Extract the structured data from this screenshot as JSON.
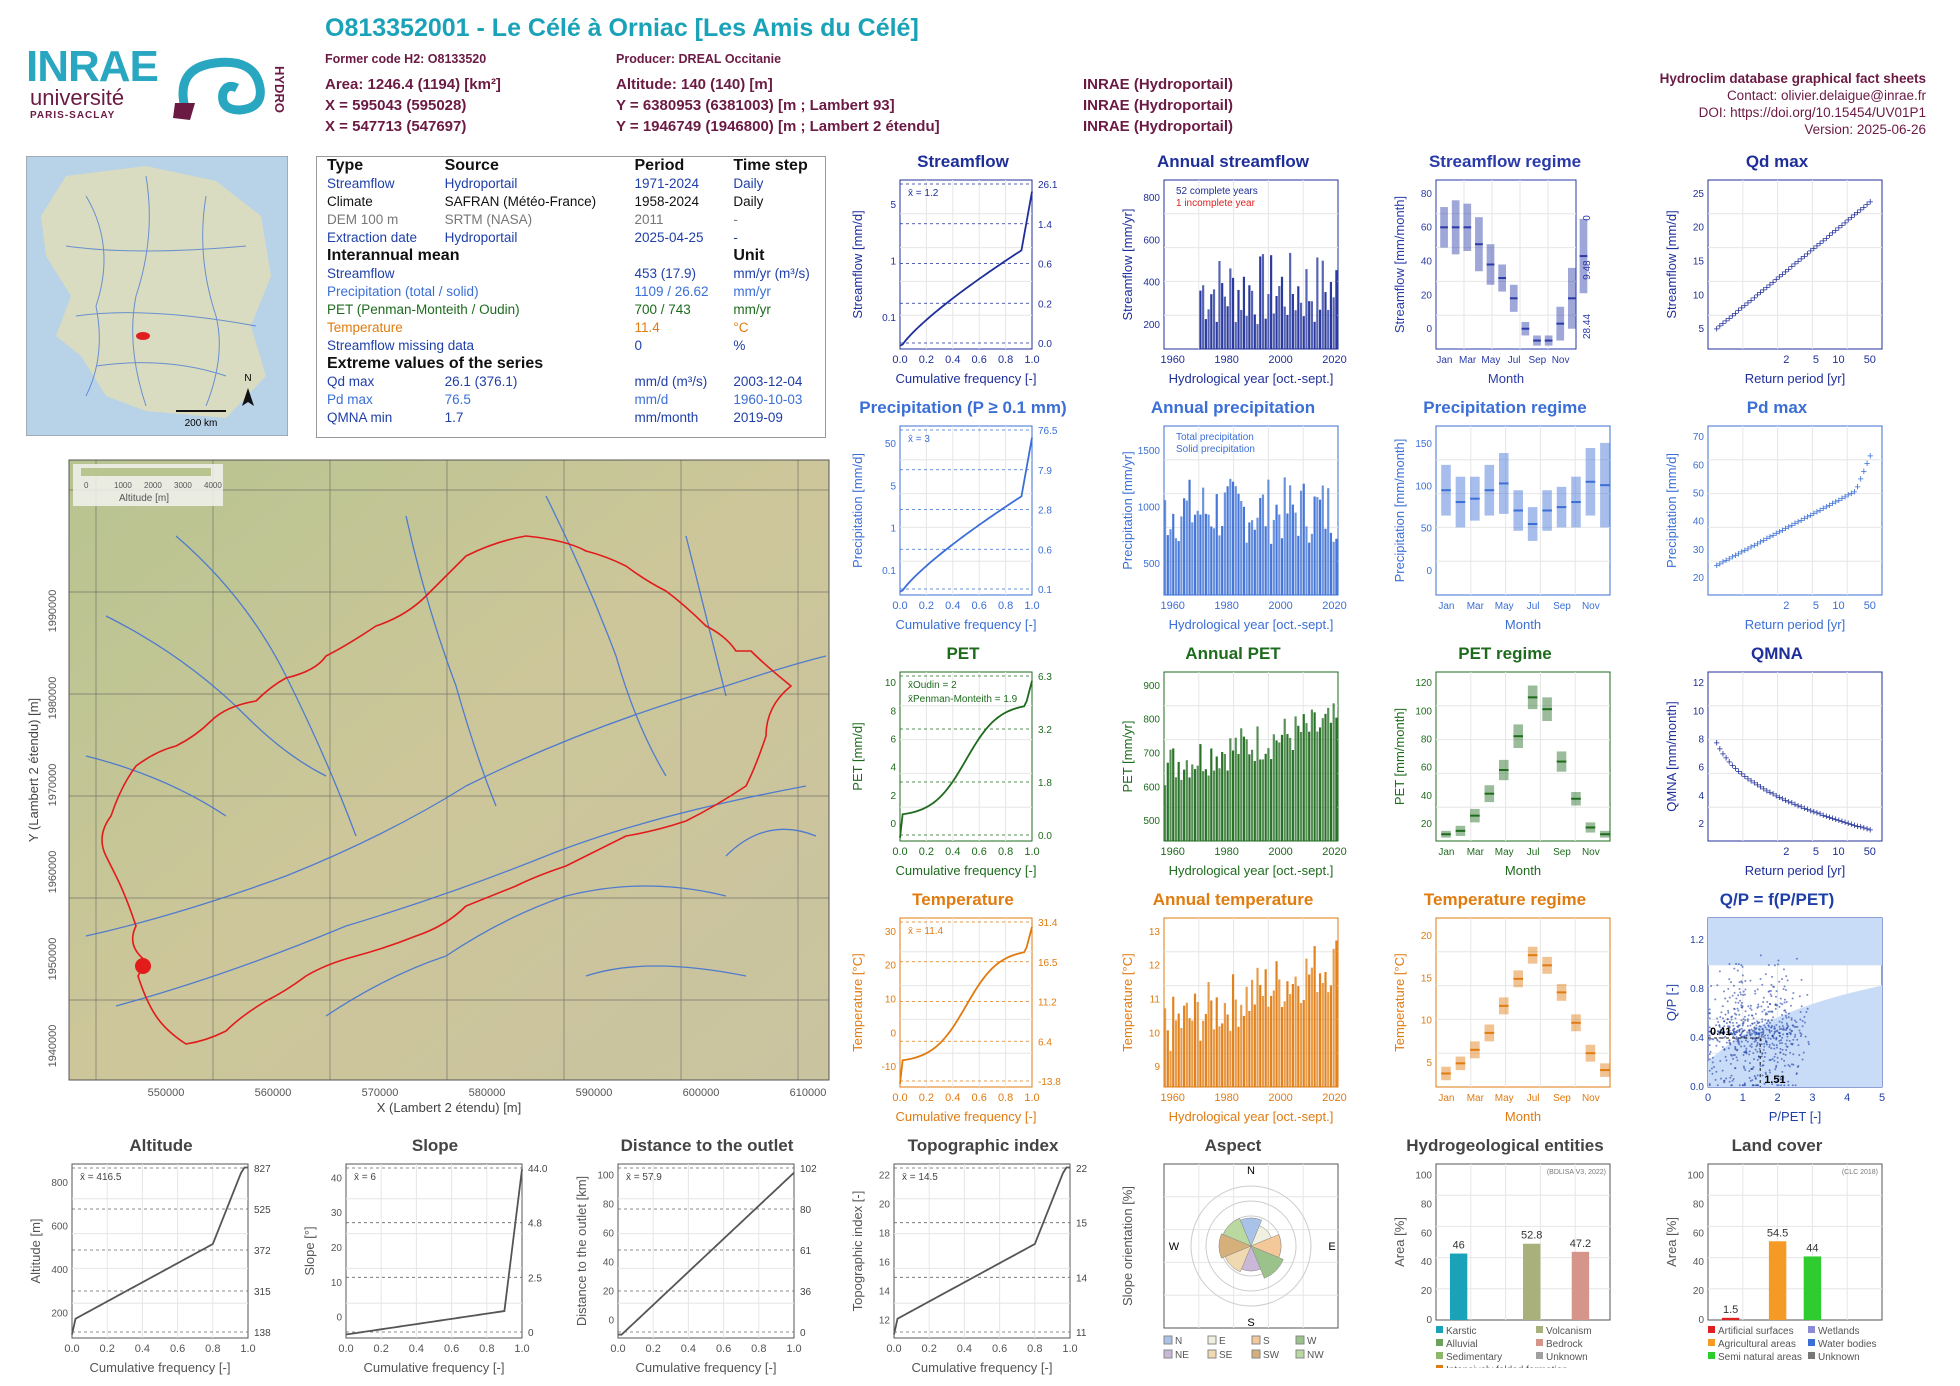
{
  "header": {
    "title": "O813352001 - Le Célé à Orniac [Les Amis du Célé]",
    "former_code": "Former code H2: O8133520",
    "producer": "Producer: DREAL Occitanie",
    "area": "Area: 1246.4 (1194) [km²]",
    "altitude": "Altitude: 140 (140) [m]",
    "x93": "X = 595043 (595028)",
    "y93": "Y = 6380953 (6381003) [m ; Lambert 93]",
    "x2e": "X = 547713 (547697)",
    "y2e": "Y = 1946749 (1946800) [m ; Lambert 2 étendu]",
    "src1": "INRAE (Hydroportail)",
    "src2": "INRAE (Hydroportail)",
    "src3": "INRAE (Hydroportail)"
  },
  "logos": {
    "inrae": "INRAE",
    "universite": "université",
    "paris_saclay": "PARIS-SACLAY",
    "hydro": "HYDRO"
  },
  "right_info": {
    "line1": "Hydroclim database graphical fact sheets",
    "line2": "Contact: olivier.delaigue@inrae.fr",
    "line3": "DOI: https://doi.org/10.15454/UV01P1",
    "line4": "Version: 2025-06-26"
  },
  "info_table": {
    "headers": [
      "Type",
      "Source",
      "Period",
      "Time step"
    ],
    "rows": [
      {
        "type": "Streamflow",
        "source": "Hydroportail",
        "period": "1971-2024",
        "step": "Daily",
        "color": "#1f3fa8"
      },
      {
        "type": "Climate",
        "source": "SAFRAN (Météo-France)",
        "period": "1958-2024",
        "step": "Daily",
        "color": "#111111"
      },
      {
        "type": "DEM 100 m",
        "source": "SRTM (NASA)",
        "period": "2011",
        "step": "-",
        "color": "#777777"
      },
      {
        "type": "Extraction date",
        "source": "Hydroportail",
        "period": "2025-04-25",
        "step": "-",
        "color": "#1f3fa8"
      }
    ],
    "interannual_title": "Interannual mean",
    "unit_title": "Unit",
    "means": [
      {
        "label": "Streamflow",
        "value": "453 (17.9)",
        "unit": "mm/yr (m³/s)",
        "color": "#1f3fa8"
      },
      {
        "label": "Precipitation (total / solid)",
        "value": "1109 / 26.62",
        "unit": "mm/yr",
        "color": "#3b6fd6"
      },
      {
        "label": "PET (Penman-Monteith / Oudin)",
        "value": "700 / 743",
        "unit": "mm/yr",
        "color": "#1e6b1e"
      },
      {
        "label": "Temperature",
        "value": "11.4",
        "unit": "°C",
        "color": "#e07b10"
      },
      {
        "label": "Streamflow missing data",
        "value": "0",
        "unit": "%",
        "color": "#1f3fa8"
      }
    ],
    "extreme_title": "Extreme values of the series",
    "extremes": [
      {
        "label": "Qd max",
        "value": "26.1 (376.1)",
        "unit": "mm/d (m³/s)",
        "date": "2003-12-04",
        "color": "#1f3fa8"
      },
      {
        "label": "Pd max",
        "value": "76.5",
        "unit": "mm/d",
        "date": "1960-10-03",
        "color": "#3b6fd6"
      },
      {
        "label": "QMNA min",
        "value": "1.7",
        "unit": "mm/month",
        "date": "2019-09",
        "color": "#1f3fa8"
      }
    ]
  },
  "minimap": {
    "scale": "200 km",
    "north": "N"
  },
  "basin_map": {
    "xlabel": "X (Lambert 2 étendu) [m]",
    "ylabel": "Y (Lambert 2 étendu) [m]",
    "xticks": [
      "550000",
      "560000",
      "570000",
      "580000",
      "590000",
      "600000",
      "610000"
    ],
    "yticks": [
      "1940000",
      "1950000",
      "1960000",
      "1970000",
      "1980000",
      "1990000"
    ],
    "legend_title": "Altitude [m]",
    "legend_ticks": [
      "0",
      "1000",
      "2000",
      "3000",
      "4000"
    ]
  },
  "chart_data": [
    {
      "id": "streamflow",
      "type": "line",
      "title": "Streamflow",
      "xlabel": "Cumulative frequency [-]",
      "ylabel": "Streamflow [mm/d]",
      "color": "#1f2f9a",
      "mean_label": "x̄ = 1.2",
      "right_ticks": [
        "26.1",
        "1.4",
        "0.6",
        "0.2",
        "0.0"
      ]
    },
    {
      "id": "annual_streamflow",
      "type": "bar",
      "title": "Annual streamflow",
      "xlabel": "Hydrological year [oct.-sept.]",
      "ylabel": "Streamflow [mm/yr]",
      "color": "#1f2f9a",
      "legend": [
        "52 complete years",
        "1 incomplete year"
      ]
    },
    {
      "id": "streamflow_regime",
      "type": "bar",
      "title": "Streamflow regime",
      "xlabel": "Month",
      "ylabel": "Streamflow [mm/month]",
      "color": "#2a3aa8",
      "months": [
        "Jan",
        "Mar",
        "May",
        "Jul",
        "Sep",
        "Nov"
      ],
      "right_ticks": [
        "28.44",
        "9.48",
        "0"
      ]
    },
    {
      "id": "qd_max",
      "type": "scatter",
      "title": "Qd max",
      "xlabel": "Return period [yr]",
      "ylabel": "Streamflow [mm/d]",
      "color": "#1f2f9a"
    },
    {
      "id": "precip",
      "type": "line",
      "title": "Precipitation (P ≥ 0.1 mm)",
      "xlabel": "Cumulative frequency [-]",
      "ylabel": "Precipitation [mm/d]",
      "color": "#3b6fd6",
      "mean_label": "x̄ = 3",
      "right_ticks": [
        "76.5",
        "7.9",
        "2.8",
        "0.6",
        "0.1"
      ]
    },
    {
      "id": "annual_precip",
      "type": "bar",
      "title": "Annual precipitation",
      "xlabel": "Hydrological year [oct.-sept.]",
      "ylabel": "Precipitation [mm/yr]",
      "color": "#3b6fd6",
      "legend": [
        "Total precipitation",
        "Solid precipitation"
      ]
    },
    {
      "id": "precip_regime",
      "type": "bar",
      "title": "Precipitation regime",
      "xlabel": "Month",
      "ylabel": "Precipitation [mm/month]",
      "color": "#3b6fd6"
    },
    {
      "id": "pd_max",
      "type": "scatter",
      "title": "Pd max",
      "xlabel": "Return period [yr]",
      "ylabel": "Precipitation [mm/d]",
      "color": "#3b6fd6"
    },
    {
      "id": "pet",
      "type": "line",
      "title": "PET",
      "xlabel": "Cumulative frequency [-]",
      "ylabel": "PET [mm/d]",
      "color": "#1e6b1e",
      "mean_label": "x̄Oudin = 2",
      "mean_label2": "x̄Penman-Monteith = 1.9",
      "right_ticks": [
        "6.3",
        "3.2",
        "1.8",
        "0.0"
      ]
    },
    {
      "id": "annual_pet",
      "type": "bar",
      "title": "Annual PET",
      "xlabel": "Hydrological year [oct.-sept.]",
      "ylabel": "PET [mm/yr]",
      "color": "#1e6b1e"
    },
    {
      "id": "pet_regime",
      "type": "bar",
      "title": "PET regime",
      "xlabel": "Month",
      "ylabel": "PET [mm/month]",
      "color": "#1e6b1e"
    },
    {
      "id": "qmna",
      "type": "scatter",
      "title": "QMNA",
      "xlabel": "Return period [yr]",
      "ylabel": "QMNA [mm/month]",
      "color": "#1f2f9a"
    },
    {
      "id": "temperature",
      "type": "line",
      "title": "Temperature",
      "xlabel": "Cumulative frequency [-]",
      "ylabel": "Temperature [°C]",
      "color": "#e07b10",
      "mean_label": "x̄ = 11.4",
      "right_ticks": [
        "31.4",
        "16.5",
        "11.2",
        "6.4",
        "-13.8"
      ]
    },
    {
      "id": "annual_temp",
      "type": "bar",
      "title": "Annual temperature",
      "xlabel": "Hydrological year [oct.-sept.]",
      "ylabel": "Temperature [°C]",
      "color": "#e07b10"
    },
    {
      "id": "temp_regime",
      "type": "bar",
      "title": "Temperature regime",
      "xlabel": "Month",
      "ylabel": "Temperature [°C]",
      "color": "#e07b10"
    },
    {
      "id": "qp",
      "type": "scatter",
      "title": "Q/P = f(P/PET)",
      "xlabel": "P/PET [-]",
      "ylabel": "Q/P [-]",
      "color": "#1f3fa8",
      "point_x": "1.51",
      "point_y": "0.41"
    },
    {
      "id": "altitude",
      "type": "line",
      "title": "Altitude",
      "xlabel": "Cumulative frequency [-]",
      "ylabel": "Altitude [m]",
      "color": "#555555",
      "mean_label": "x̄ = 416.5",
      "right_ticks": [
        "827",
        "525",
        "372",
        "315",
        "138"
      ]
    },
    {
      "id": "slope",
      "type": "line",
      "title": "Slope",
      "xlabel": "Cumulative frequency [-]",
      "ylabel": "Slope [°]",
      "color": "#555555",
      "mean_label": "x̄ = 6",
      "right_ticks": [
        "44.0",
        "4.8",
        "2.5",
        "0"
      ]
    },
    {
      "id": "distance",
      "type": "line",
      "title": "Distance to the outlet",
      "xlabel": "Cumulative frequency [-]",
      "ylabel": "Distance to the outlet [km]",
      "color": "#555555",
      "mean_label": "x̄ = 57.9",
      "right_ticks": [
        "102",
        "80",
        "61",
        "36",
        "0"
      ]
    },
    {
      "id": "topo",
      "type": "line",
      "title": "Topographic index",
      "xlabel": "Cumulative frequency [-]",
      "ylabel": "Topographic index [-]",
      "color": "#555555",
      "mean_label": "x̄ = 14.5",
      "right_ticks": [
        "22",
        "15",
        "14",
        "11"
      ]
    },
    {
      "id": "aspect",
      "type": "pie",
      "title": "Aspect",
      "ylabel": "Slope orientation [%]",
      "legend": [
        "N",
        "E",
        "S",
        "W",
        "NE",
        "SE",
        "SW",
        "NW"
      ]
    },
    {
      "id": "hydrogeo",
      "type": "bar",
      "title": "Hydrogeological entities",
      "ylabel": "Area [%]",
      "source": "(BDLISA V3, 2022)",
      "values": [
        46,
        52.8,
        47.2
      ],
      "labels": [
        "46",
        "52.8",
        "47.2"
      ],
      "legend": [
        "Karstic",
        "Volcanism",
        "Alluvial",
        "Bedrock",
        "Sedimentary",
        "Unknown",
        "Intensively folded formation"
      ]
    },
    {
      "id": "landcover",
      "type": "bar",
      "title": "Land cover",
      "ylabel": "Area [%]",
      "source": "(CLC 2018)",
      "values": [
        1.5,
        54.5,
        44
      ],
      "labels": [
        "1.5",
        "54.5",
        "44"
      ],
      "legend": [
        "Artificial surfaces",
        "Wetlands",
        "Agricultural areas",
        "Water bodies",
        "Semi natural areas",
        "Unknown"
      ]
    }
  ]
}
